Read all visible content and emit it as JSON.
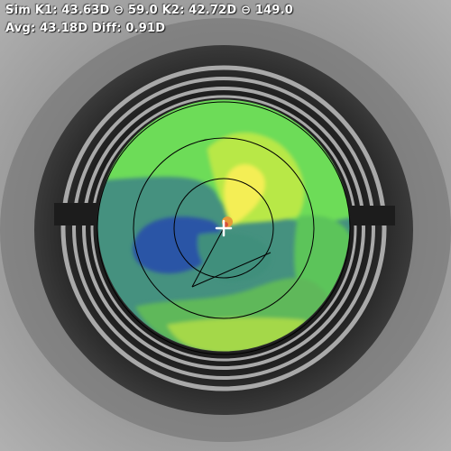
{
  "readout": {
    "sim_k_line": "Sim K1: 43.63D ⊖ 59.0 K2: 42.72D ⊖ 149.0",
    "avg_line": "Avg: 43.18D Diff: 0.91D"
  },
  "map": {
    "type": "corneal topography overlay",
    "rings": 3,
    "colors": {
      "teal": "#3f8f7c",
      "dark_blue": "#2b55a6",
      "light_green": "#6ddc58",
      "yellow_green": "#b8e846",
      "yellow": "#f4ee55",
      "orange": "#e59a3a",
      "ring_line": "#000000",
      "marker": "#ffffff"
    }
  },
  "icons": {
    "center": "crosshair-icon",
    "mires": "placido-rings"
  }
}
